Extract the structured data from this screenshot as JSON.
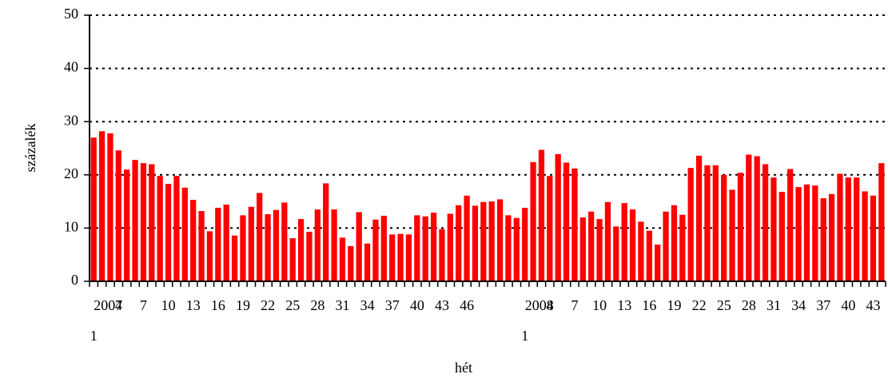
{
  "chart_data": {
    "type": "bar",
    "xlabel": "hét",
    "ylabel": "százalék",
    "categories": [
      "2007\n1",
      null,
      null,
      "4",
      null,
      null,
      "7",
      null,
      null,
      "10",
      null,
      null,
      "13",
      null,
      null,
      "16",
      null,
      null,
      "19",
      null,
      null,
      "22",
      null,
      null,
      "25",
      null,
      null,
      "28",
      null,
      null,
      "31",
      null,
      null,
      "34",
      null,
      null,
      "37",
      null,
      null,
      "40",
      null,
      null,
      "43",
      null,
      null,
      "46",
      null,
      null,
      null,
      null,
      null,
      null,
      "2008\n1",
      null,
      null,
      "4",
      null,
      null,
      "7",
      null,
      null,
      "10",
      null,
      null,
      "13",
      null,
      null,
      "16",
      null,
      null,
      "19",
      null,
      null,
      "22",
      null,
      null,
      "25",
      null,
      null,
      "28",
      null,
      null,
      "31",
      null,
      null,
      "34",
      null,
      null,
      "37",
      null,
      null,
      "40",
      null,
      null,
      "43",
      null
    ],
    "values": [
      27,
      28.2,
      27.8,
      24.6,
      21,
      22.8,
      22.2,
      22,
      19.8,
      18.3,
      19.8,
      17.6,
      15.3,
      13.2,
      9.4,
      13.8,
      14.4,
      8.6,
      12.4,
      14,
      16.6,
      12.6,
      13.4,
      14.8,
      8.1,
      11.7,
      9.3,
      13.5,
      18.4,
      13.5,
      8.2,
      6.6,
      13,
      7.1,
      11.6,
      12.3,
      8.8,
      8.9,
      8.8,
      12.4,
      12.2,
      12.9,
      9.8,
      12.7,
      14.3,
      16.1,
      14.2,
      14.9,
      15,
      15.4,
      12.4,
      11.9,
      13.8,
      22.4,
      24.7,
      19.8,
      23.9,
      22.3,
      21.2,
      12,
      13.1,
      11.7,
      14.9,
      10.3,
      14.7,
      13.5,
      11.2,
      9.5,
      6.9,
      13.1,
      14.3,
      12.5,
      21.3,
      23.6,
      21.8,
      21.8,
      20,
      17.2,
      20.4,
      23.8,
      23.5,
      22,
      19.5,
      16.8,
      21.1,
      17.7,
      18.2,
      18,
      15.6,
      16.4,
      20.2,
      19.5,
      19.5,
      16.9,
      16.1,
      22.2
    ],
    "color": "#ff0000",
    "ylim": [
      0,
      50
    ],
    "yticks": [
      0,
      10,
      20,
      30,
      40,
      50
    ],
    "grid": true
  }
}
